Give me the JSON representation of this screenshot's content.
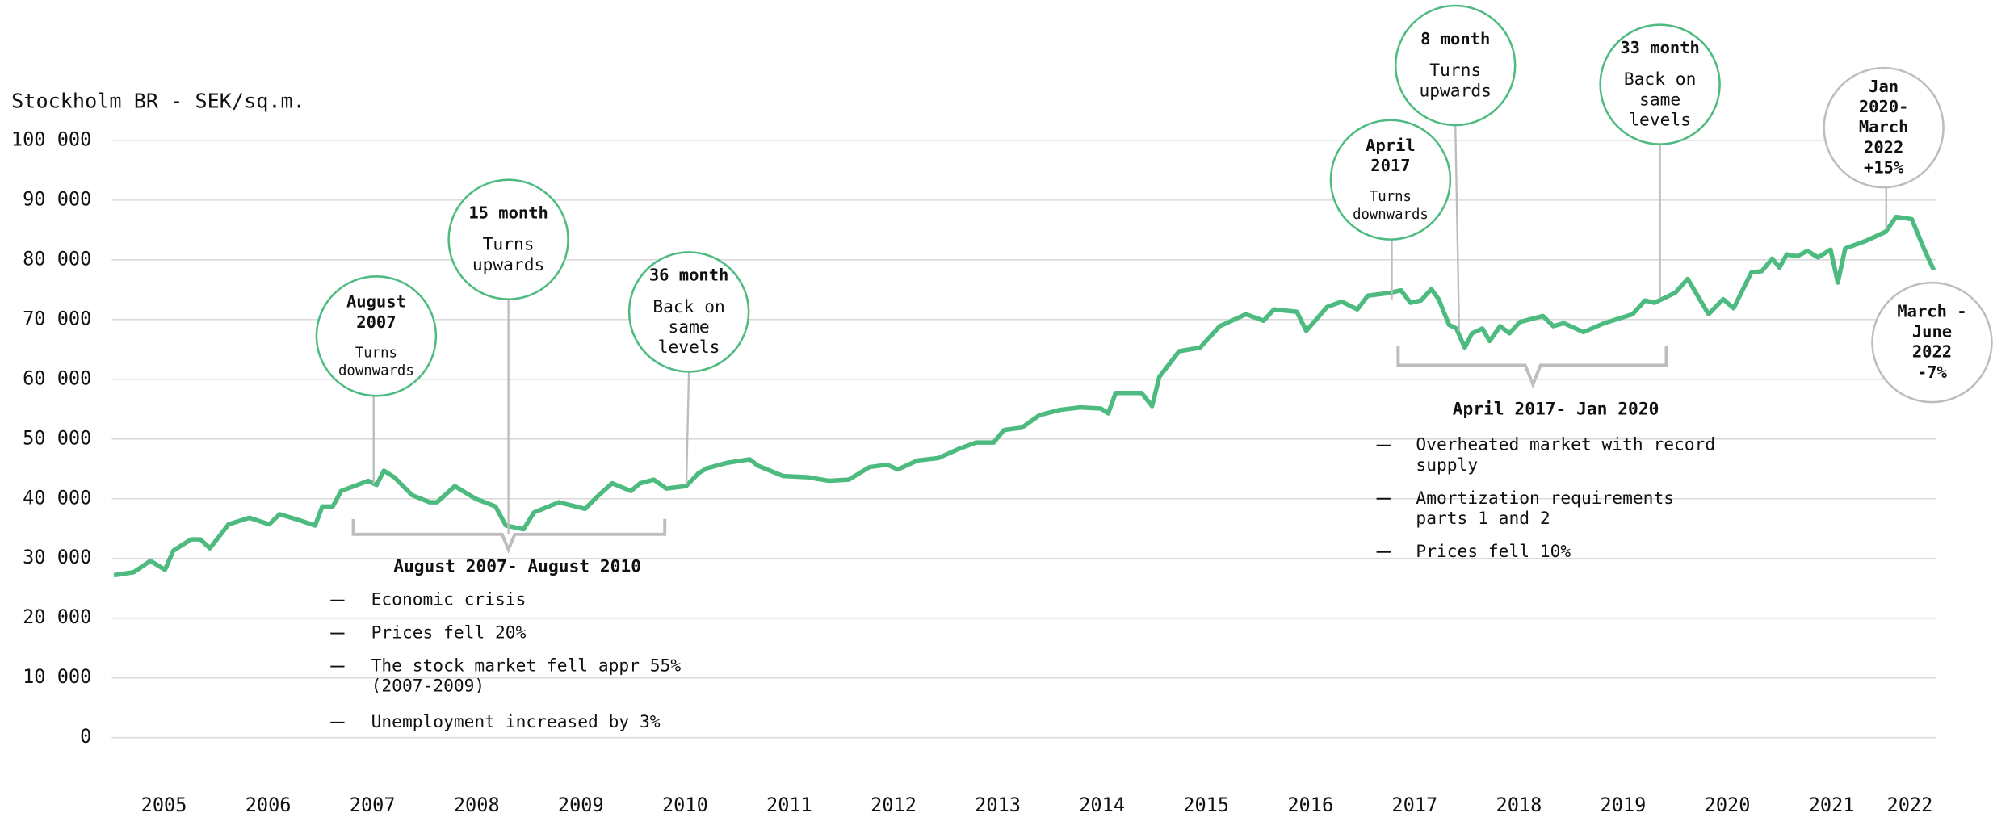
{
  "chart_data": {
    "type": "line",
    "y_label": "Stockholm BR - SEK/sq.m.",
    "color": "#4dbb80",
    "grid": true,
    "xlim": [
      2005,
      2022.5
    ],
    "ylim": [
      0,
      100000
    ],
    "yticks": [
      {
        "value": 0,
        "label": "0"
      },
      {
        "value": 10000,
        "label": "10 000"
      },
      {
        "value": 20000,
        "label": "20 000"
      },
      {
        "value": 30000,
        "label": "30 000"
      },
      {
        "value": 40000,
        "label": "40 000"
      },
      {
        "value": 50000,
        "label": "50 000"
      },
      {
        "value": 60000,
        "label": "60 000"
      },
      {
        "value": 70000,
        "label": "70 000"
      },
      {
        "value": 80000,
        "label": "80 000"
      },
      {
        "value": 90000,
        "label": "90 000"
      },
      {
        "value": 100000,
        "label": "100 000"
      }
    ],
    "xticks": [
      {
        "value": 2005.5,
        "label": "2005"
      },
      {
        "value": 2006.5,
        "label": "2006"
      },
      {
        "value": 2007.5,
        "label": "2007"
      },
      {
        "value": 2008.5,
        "label": "2008"
      },
      {
        "value": 2009.5,
        "label": "2009"
      },
      {
        "value": 2010.5,
        "label": "2010"
      },
      {
        "value": 2011.5,
        "label": "2011"
      },
      {
        "value": 2012.5,
        "label": "2012"
      },
      {
        "value": 2013.5,
        "label": "2013"
      },
      {
        "value": 2014.5,
        "label": "2014"
      },
      {
        "value": 2015.5,
        "label": "2015"
      },
      {
        "value": 2016.5,
        "label": "2016"
      },
      {
        "value": 2017.5,
        "label": "2017"
      },
      {
        "value": 2018.5,
        "label": "2018"
      },
      {
        "value": 2019.5,
        "label": "2019"
      },
      {
        "value": 2020.5,
        "label": "2020"
      },
      {
        "value": 2021.5,
        "label": "2021"
      },
      {
        "value": 2022.25,
        "label": "2022"
      }
    ],
    "x": [
      2005.02,
      2005.21,
      2005.37,
      2005.51,
      2005.59,
      2005.76,
      2005.85,
      2005.94,
      2006.12,
      2006.32,
      2006.51,
      2006.61,
      2006.8,
      2006.95,
      2007.02,
      2007.12,
      2007.2,
      2007.46,
      2007.54,
      2007.61,
      2007.71,
      2007.88,
      2008.05,
      2008.12,
      2008.29,
      2008.49,
      2008.68,
      2008.78,
      2008.95,
      2009.05,
      2009.29,
      2009.54,
      2009.66,
      2009.8,
      2009.98,
      2010.07,
      2010.2,
      2010.32,
      2010.51,
      2010.63,
      2010.71,
      2010.9,
      2011.12,
      2011.2,
      2011.44,
      2011.68,
      2011.88,
      2012.07,
      2012.27,
      2012.44,
      2012.54,
      2012.73,
      2012.93,
      2013.12,
      2013.29,
      2013.46,
      2013.56,
      2013.73,
      2013.9,
      2014.1,
      2014.29,
      2014.49,
      2014.56,
      2014.63,
      2014.88,
      2014.98,
      2015.05,
      2015.24,
      2015.44,
      2015.63,
      2015.88,
      2016.05,
      2016.15,
      2016.37,
      2016.46,
      2016.66,
      2016.8,
      2016.95,
      2017.05,
      2017.27,
      2017.37,
      2017.46,
      2017.56,
      2017.66,
      2017.73,
      2017.83,
      2017.9,
      2017.98,
      2018.05,
      2018.15,
      2018.22,
      2018.32,
      2018.41,
      2018.51,
      2018.73,
      2018.83,
      2018.93,
      2019.12,
      2019.32,
      2019.59,
      2019.71,
      2019.8,
      2020.0,
      2020.12,
      2020.32,
      2020.46,
      2020.56,
      2020.73,
      2020.83,
      2020.93,
      2021.0,
      2021.07,
      2021.17,
      2021.27,
      2021.37,
      2021.49,
      2021.56,
      2021.63,
      2021.83,
      2022.02,
      2022.12,
      2022.27,
      2022.39,
      2022.48
    ],
    "values": [
      27200,
      27700,
      29600,
      28100,
      31300,
      33200,
      33200,
      31700,
      35700,
      36800,
      35700,
      37400,
      36400,
      35500,
      38700,
      38700,
      41300,
      43000,
      42300,
      44700,
      43600,
      40600,
      39400,
      39400,
      42100,
      40000,
      38700,
      35500,
      34900,
      37700,
      39400,
      38300,
      40400,
      42600,
      41300,
      42600,
      43200,
      41700,
      42100,
      44300,
      45100,
      46000,
      46600,
      45500,
      43800,
      43600,
      43000,
      43200,
      45300,
      45700,
      44900,
      46400,
      46800,
      48300,
      49400,
      49400,
      51500,
      51900,
      54000,
      54900,
      55300,
      55100,
      54300,
      57700,
      57700,
      55500,
      60400,
      64700,
      65300,
      68900,
      70900,
      69800,
      71700,
      71300,
      68100,
      72100,
      73000,
      71700,
      74000,
      74500,
      74900,
      72800,
      73200,
      75100,
      73400,
      69100,
      68500,
      65300,
      67700,
      68500,
      66400,
      68900,
      67700,
      69600,
      70600,
      68900,
      69400,
      67900,
      69400,
      70900,
      73200,
      72800,
      74500,
      76800,
      70900,
      73400,
      71900,
      77900,
      78100,
      80200,
      78700,
      80900,
      80600,
      81500,
      80400,
      81700,
      76200,
      81900,
      83200,
      84700,
      87200,
      86800,
      81700,
      78300
    ],
    "callouts": [
      {
        "title": [
          "August",
          "2007"
        ],
        "text": [
          "Turns",
          "downwards"
        ]
      },
      {
        "title": [
          "15 month"
        ],
        "text": [
          "Turns",
          "upwards"
        ]
      },
      {
        "title": [
          "36 month"
        ],
        "text": [
          "Back on",
          "same",
          "levels"
        ]
      },
      {
        "title": [
          "April",
          "2017"
        ],
        "text": [
          "Turns",
          "downwards"
        ]
      },
      {
        "title": [
          "8 month"
        ],
        "text": [
          "Turns",
          "upwards"
        ]
      },
      {
        "title": [
          "33 month"
        ],
        "text": [
          "Back on",
          "same",
          "levels"
        ]
      },
      {
        "title": [
          "Jan",
          "2020-",
          "March",
          "2022",
          "+15%"
        ],
        "text": []
      },
      {
        "title": [
          "March -",
          "June",
          "2022",
          "-7%"
        ],
        "text": []
      }
    ],
    "notes": [
      {
        "heading": "August 2007- August 2010",
        "items": [
          [
            "Economic crisis"
          ],
          [
            "Prices fell 20%"
          ],
          [
            "The stock market fell appr 55%",
            "(2007-2009)"
          ],
          [
            "Unemployment increased by 3%"
          ]
        ]
      },
      {
        "heading": "April 2017- Jan 2020",
        "items": [
          [
            "Overheated market with record",
            "supply"
          ],
          [
            "Amortization requirements",
            "parts 1 and 2"
          ],
          [
            "Prices fell 10%"
          ]
        ]
      }
    ]
  }
}
